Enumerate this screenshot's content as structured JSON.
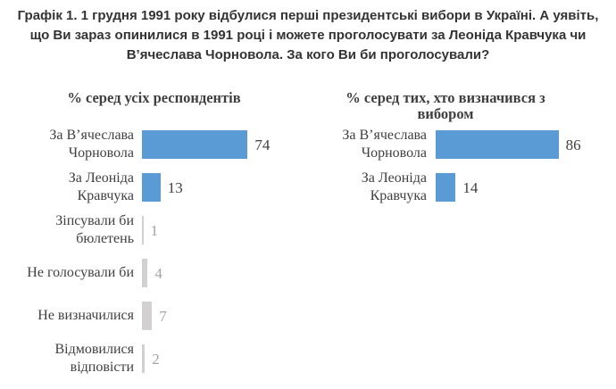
{
  "header": {
    "lines": [
      "Графік 1. 1 грудня 1991 року відбулися перші президентські вибори в Україні. А уявіть,",
      "що Ви зараз опинилися в 1991 році і можете проголосувати за Леоніда Кравчука чи",
      "В’ячеслава Чорновола. За кого Ви би проголосували?"
    ]
  },
  "colors": {
    "bar_blue": "#5B9BD5",
    "bar_gray": "#D2D0D0",
    "value_dark": "#404040",
    "value_gray": "#A3A3A3"
  },
  "chart_data": [
    {
      "type": "bar",
      "orientation": "horizontal",
      "title": "% серед усіх респондентів",
      "categories": [
        "За В’ячеслава Чорновола",
        "За Леоніда Кравчука",
        "Зіпсували би бюлетень",
        "Не голосували би",
        "Не визначилися",
        "Відмовилися відповісти"
      ],
      "values": [
        74,
        13,
        1,
        4,
        7,
        2
      ],
      "bar_colors": [
        "blue",
        "blue",
        "gray",
        "gray",
        "gray",
        "gray"
      ],
      "xlim": [
        0,
        100
      ],
      "data_labels": true,
      "grid": false,
      "legend": false
    },
    {
      "type": "bar",
      "orientation": "horizontal",
      "title": "% серед тих, хто визначився з вибором",
      "categories": [
        "За В’ячеслава Чорновола",
        "За Леоніда Кравчука"
      ],
      "values": [
        86,
        14
      ],
      "bar_colors": [
        "blue",
        "blue"
      ],
      "xlim": [
        0,
        100
      ],
      "data_labels": true,
      "grid": false,
      "legend": false
    }
  ]
}
